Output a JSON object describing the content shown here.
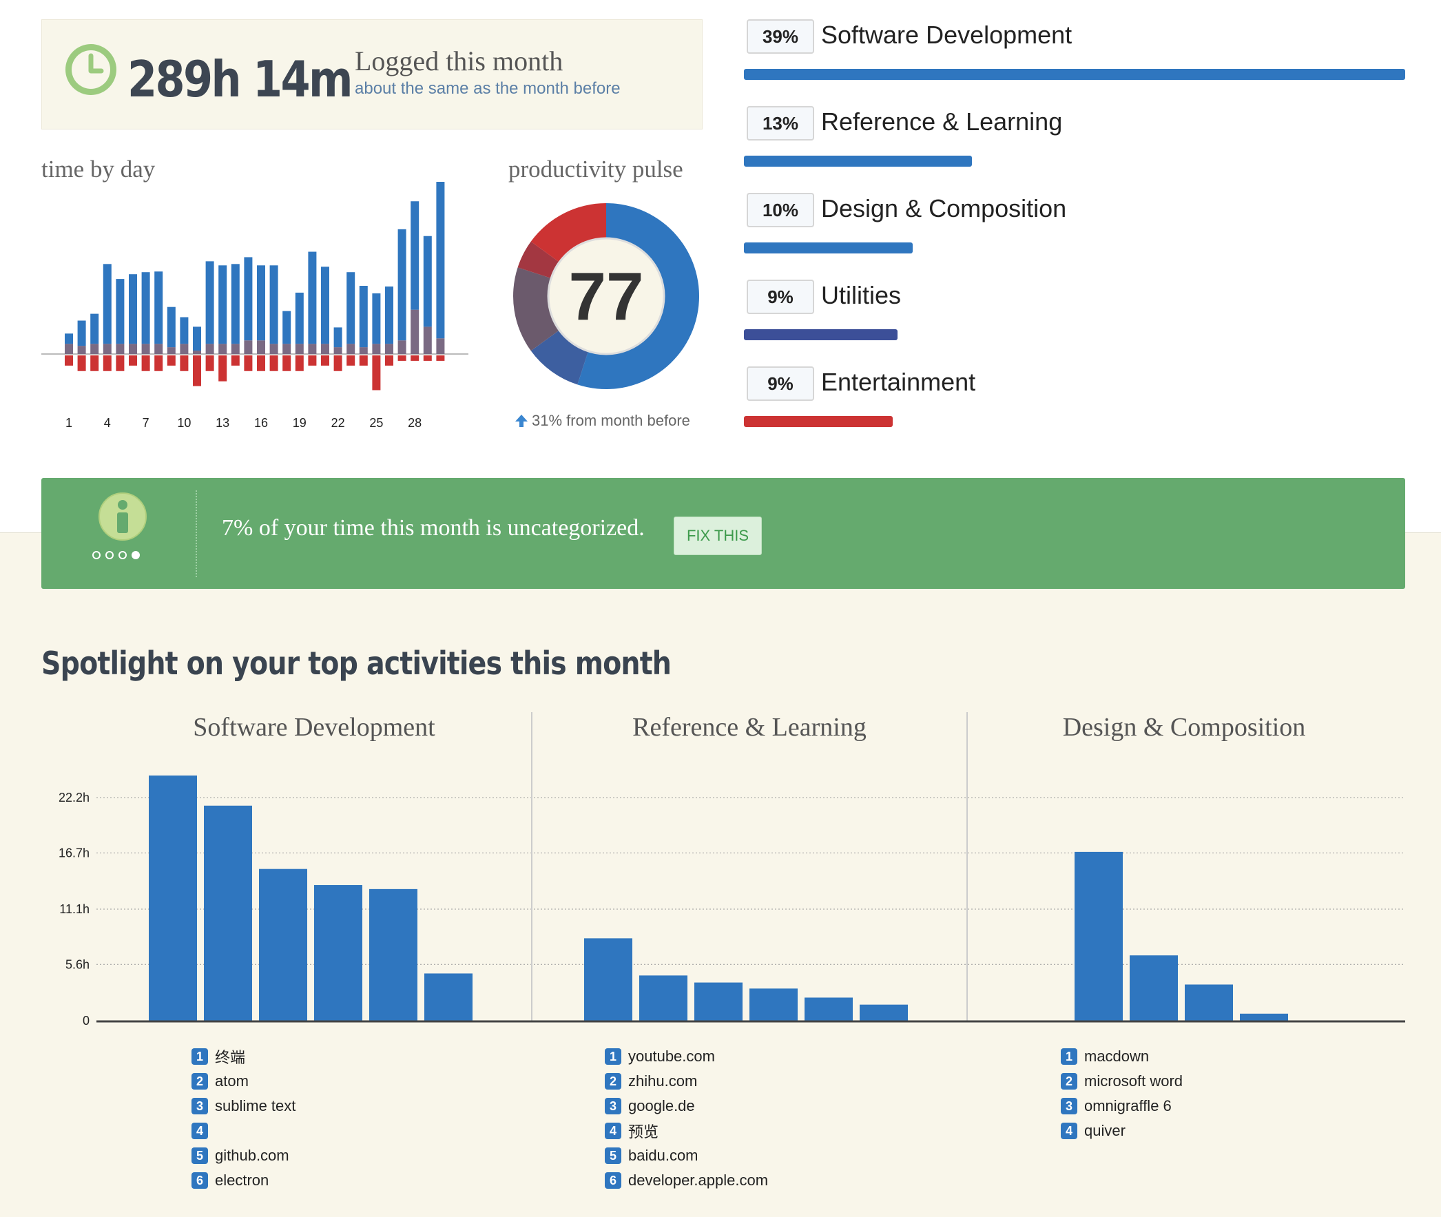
{
  "summary": {
    "total_time": "289h 14m",
    "logged_label": "Logged this month",
    "comparison": "about the same as the month before"
  },
  "time_by_day": {
    "title": "time by day",
    "chart_data": {
      "type": "bar",
      "x_tick_labels": [
        "1",
        "4",
        "7",
        "10",
        "13",
        "16",
        "19",
        "22",
        "25",
        "28"
      ],
      "days": [
        1,
        2,
        3,
        4,
        5,
        6,
        7,
        8,
        9,
        10,
        11,
        12,
        13,
        14,
        15,
        16,
        17,
        18,
        19,
        20,
        21,
        22,
        23,
        24,
        25,
        26,
        27,
        28,
        29,
        30
      ],
      "series": [
        {
          "name": "productive",
          "color": "#2f76bf",
          "values": [
            1.5,
            3.7,
            4.4,
            11.7,
            9.5,
            10.2,
            10.5,
            10.6,
            5.9,
            3.9,
            3.5,
            12.1,
            11.5,
            11.7,
            12.2,
            11.0,
            11.5,
            4.8,
            7.5,
            13.5,
            11.3,
            2.9,
            10.5,
            9.0,
            7.4,
            8.4,
            16.3,
            15.9,
            13.3,
            24.2
          ]
        },
        {
          "name": "neutral",
          "color": "#7a6a83",
          "values": [
            1.5,
            1.2,
            1.5,
            1.5,
            1.5,
            1.5,
            1.5,
            1.5,
            1.0,
            1.5,
            0.5,
            1.5,
            1.5,
            1.5,
            2.0,
            2.0,
            1.5,
            1.5,
            1.5,
            1.5,
            1.5,
            1.0,
            1.5,
            1.0,
            1.5,
            1.5,
            2.0,
            6.5,
            4.0,
            2.3
          ]
        },
        {
          "name": "distracting",
          "color": "#cc3333",
          "values": [
            -1.5,
            -2.3,
            -2.3,
            -2.3,
            -2.3,
            -1.5,
            -2.3,
            -2.3,
            -1.5,
            -2.3,
            -4.5,
            -2.3,
            -3.8,
            -1.5,
            -2.3,
            -2.3,
            -2.3,
            -2.3,
            -2.3,
            -1.5,
            -1.5,
            -2.3,
            -1.5,
            -1.5,
            -5.1,
            -1.5,
            -0.8,
            -0.8,
            -0.8,
            -0.8
          ]
        }
      ]
    }
  },
  "productivity_pulse": {
    "title": "productivity pulse",
    "score": "77",
    "change": "31% from month before",
    "chart_data": {
      "type": "pie",
      "score": 77,
      "segments": [
        {
          "label": "very productive",
          "color": "#2f76bf",
          "value": 55
        },
        {
          "label": "productive",
          "color": "#3d5fa0",
          "value": 10
        },
        {
          "label": "neutral",
          "color": "#6b5a6c",
          "value": 15
        },
        {
          "label": "distracting",
          "color": "#a33741",
          "value": 5
        },
        {
          "label": "very distracting",
          "color": "#cc3333",
          "value": 15
        }
      ]
    }
  },
  "categories": [
    {
      "pct": "39%",
      "name": "Software Development",
      "fraction": 1.0,
      "color": "#2f76bf"
    },
    {
      "pct": "13%",
      "name": "Reference & Learning",
      "fraction": 0.345,
      "color": "#2f76bf"
    },
    {
      "pct": "10%",
      "name": "Design & Composition",
      "fraction": 0.255,
      "color": "#2f76bf"
    },
    {
      "pct": "9%",
      "name": "Utilities",
      "fraction": 0.232,
      "color": "#3c4f98"
    },
    {
      "pct": "9%",
      "name": "Entertainment",
      "fraction": 0.225,
      "color": "#cc3333"
    }
  ],
  "banner": {
    "message": "7% of your time this month is uncategorized.",
    "button_label": "FIX THIS"
  },
  "spotlight": {
    "title": "Spotlight on your top activities this month",
    "y_ticks": [
      "0",
      "5.6h",
      "11.1h",
      "16.7h",
      "22.2h"
    ],
    "chart_data": [
      {
        "type": "bar",
        "title": "Software Development",
        "categories": [
          "终端",
          "atom",
          "sublime text",
          "",
          "github.com",
          "electron"
        ],
        "values": [
          24.4,
          21.4,
          15.1,
          13.5,
          13.1,
          4.7
        ],
        "ylim": [
          0,
          24.4
        ]
      },
      {
        "type": "bar",
        "title": "Reference & Learning",
        "categories": [
          "youtube.com",
          "zhihu.com",
          "google.de",
          "预览",
          "baidu.com",
          "developer.apple.com"
        ],
        "values": [
          8.2,
          4.5,
          3.8,
          3.2,
          2.3,
          1.6
        ],
        "ylim": [
          0,
          24.4
        ]
      },
      {
        "type": "bar",
        "title": "Design & Composition",
        "categories": [
          "macdown",
          "microsoft word",
          "omnigraffle 6",
          "quiver"
        ],
        "values": [
          16.8,
          6.5,
          3.6,
          0.7
        ],
        "ylim": [
          0,
          24.4
        ]
      }
    ]
  }
}
